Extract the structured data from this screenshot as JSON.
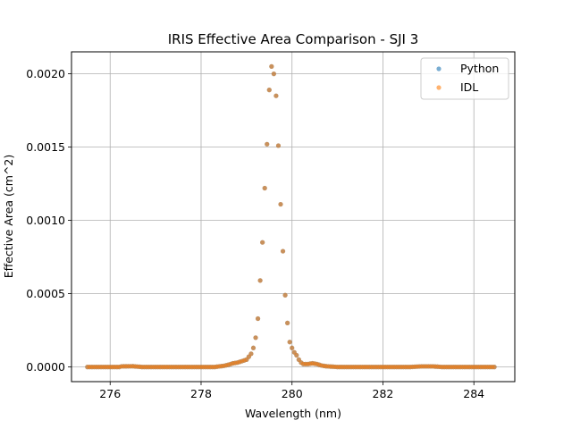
{
  "chart_data": {
    "type": "scatter",
    "title": "IRIS Effective Area Comparison - SJI 3",
    "xlabel": "Wavelength (nm)",
    "ylabel": "Effective Area (cm^2)",
    "xlim": [
      275.15,
      284.9
    ],
    "ylim": [
      -0.0001,
      0.00215
    ],
    "x_ticks": [
      276,
      278,
      280,
      282,
      284
    ],
    "x_tick_labels": [
      "276",
      "278",
      "280",
      "282",
      "284"
    ],
    "y_ticks": [
      0.0,
      0.0005,
      0.001,
      0.0015,
      0.002
    ],
    "y_tick_labels": [
      "0.0000",
      "0.0005",
      "0.0010",
      "0.0015",
      "0.0020"
    ],
    "grid": true,
    "legend": {
      "position": "top-right",
      "entries": [
        "Python",
        "IDL"
      ]
    },
    "colors": {
      "Python": "#1f77b4",
      "IDL": "#ff7f0e"
    },
    "x_start": 275.5,
    "x_end": 284.45,
    "x_step": 0.05,
    "series": [
      {
        "name": "Python",
        "points": [
          [
            275.5,
            0.0
          ],
          [
            276.2,
            0.0
          ],
          [
            276.25,
            4e-06
          ],
          [
            276.5,
            5e-06
          ],
          [
            276.7,
            0.0
          ],
          [
            278.0,
            0.0
          ],
          [
            278.3,
            0.0
          ],
          [
            278.5,
            8e-06
          ],
          [
            278.6,
            1.5e-05
          ],
          [
            278.7,
            2.5e-05
          ],
          [
            278.8,
            3e-05
          ],
          [
            279.0,
            5e-05
          ],
          [
            279.05,
            7e-05
          ],
          [
            279.1,
            9e-05
          ],
          [
            279.15,
            0.00013
          ],
          [
            279.2,
            0.0002
          ],
          [
            279.25,
            0.00033
          ],
          [
            279.3,
            0.00059
          ],
          [
            279.35,
            0.00085
          ],
          [
            279.4,
            0.00122
          ],
          [
            279.45,
            0.00152
          ],
          [
            279.5,
            0.00189
          ],
          [
            279.55,
            0.00205
          ],
          [
            279.6,
            0.002
          ],
          [
            279.65,
            0.00185
          ],
          [
            279.7,
            0.00151
          ],
          [
            279.75,
            0.00111
          ],
          [
            279.8,
            0.00079
          ],
          [
            279.85,
            0.00049
          ],
          [
            279.9,
            0.0003
          ],
          [
            279.95,
            0.00017
          ],
          [
            280.0,
            0.00013
          ],
          [
            280.05,
            0.0001
          ],
          [
            280.1,
            8e-05
          ],
          [
            280.15,
            5e-05
          ],
          [
            280.2,
            3e-05
          ],
          [
            280.25,
            2e-05
          ],
          [
            280.35,
            2e-05
          ],
          [
            280.45,
            2.5e-05
          ],
          [
            280.55,
            2e-05
          ],
          [
            280.65,
            1e-05
          ],
          [
            280.75,
            5e-06
          ],
          [
            281.0,
            0.0
          ],
          [
            282.6,
            0.0
          ],
          [
            282.85,
            4e-06
          ],
          [
            283.1,
            4e-06
          ],
          [
            283.3,
            0.0
          ],
          [
            284.45,
            0.0
          ]
        ]
      },
      {
        "name": "IDL",
        "points": [
          [
            275.5,
            0.0
          ],
          [
            276.2,
            0.0
          ],
          [
            276.25,
            4e-06
          ],
          [
            276.5,
            5e-06
          ],
          [
            276.7,
            0.0
          ],
          [
            278.0,
            0.0
          ],
          [
            278.3,
            0.0
          ],
          [
            278.5,
            8e-06
          ],
          [
            278.6,
            1.5e-05
          ],
          [
            278.7,
            2.5e-05
          ],
          [
            278.8,
            3e-05
          ],
          [
            279.0,
            5e-05
          ],
          [
            279.05,
            7e-05
          ],
          [
            279.1,
            9e-05
          ],
          [
            279.15,
            0.00013
          ],
          [
            279.2,
            0.0002
          ],
          [
            279.25,
            0.00033
          ],
          [
            279.3,
            0.00059
          ],
          [
            279.35,
            0.00085
          ],
          [
            279.4,
            0.00122
          ],
          [
            279.45,
            0.00152
          ],
          [
            279.5,
            0.00189
          ],
          [
            279.55,
            0.00205
          ],
          [
            279.6,
            0.002
          ],
          [
            279.65,
            0.00185
          ],
          [
            279.7,
            0.00151
          ],
          [
            279.75,
            0.00111
          ],
          [
            279.8,
            0.00079
          ],
          [
            279.85,
            0.00049
          ],
          [
            279.9,
            0.0003
          ],
          [
            279.95,
            0.00017
          ],
          [
            280.0,
            0.00013
          ],
          [
            280.05,
            0.0001
          ],
          [
            280.1,
            8e-05
          ],
          [
            280.15,
            5e-05
          ],
          [
            280.2,
            3e-05
          ],
          [
            280.25,
            2e-05
          ],
          [
            280.35,
            2e-05
          ],
          [
            280.45,
            2.5e-05
          ],
          [
            280.55,
            2e-05
          ],
          [
            280.65,
            1e-05
          ],
          [
            280.75,
            5e-06
          ],
          [
            281.0,
            0.0
          ],
          [
            282.6,
            0.0
          ],
          [
            282.85,
            4e-06
          ],
          [
            283.1,
            4e-06
          ],
          [
            283.3,
            0.0
          ],
          [
            284.45,
            0.0
          ]
        ]
      }
    ]
  }
}
